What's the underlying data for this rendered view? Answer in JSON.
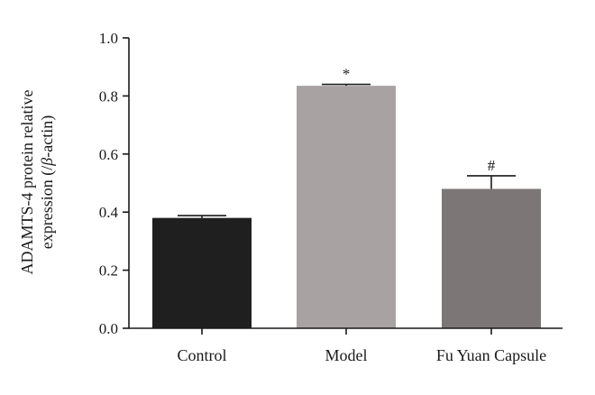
{
  "chart_data": {
    "type": "bar",
    "categories": [
      "Control",
      "Model",
      "Fu Yuan Capsule"
    ],
    "values": [
      0.38,
      0.835,
      0.48
    ],
    "errors": [
      0.008,
      0.005,
      0.045
    ],
    "annotations": [
      "",
      "*",
      "#"
    ],
    "colors": [
      "#1f1f1f",
      "#a8a2a2",
      "#7d7677"
    ],
    "ylabel_lines": [
      "ADAMTS-4 protein relative",
      "expression (/",
      "β",
      "-actin)"
    ],
    "ylim": [
      0.0,
      1.0
    ],
    "yticks": [
      0.0,
      0.2,
      0.4,
      0.6,
      0.8,
      1.0
    ],
    "ytick_labels": [
      "0.0",
      "0.2",
      "0.4",
      "0.6",
      "0.8",
      "1.0"
    ],
    "grid": false
  }
}
